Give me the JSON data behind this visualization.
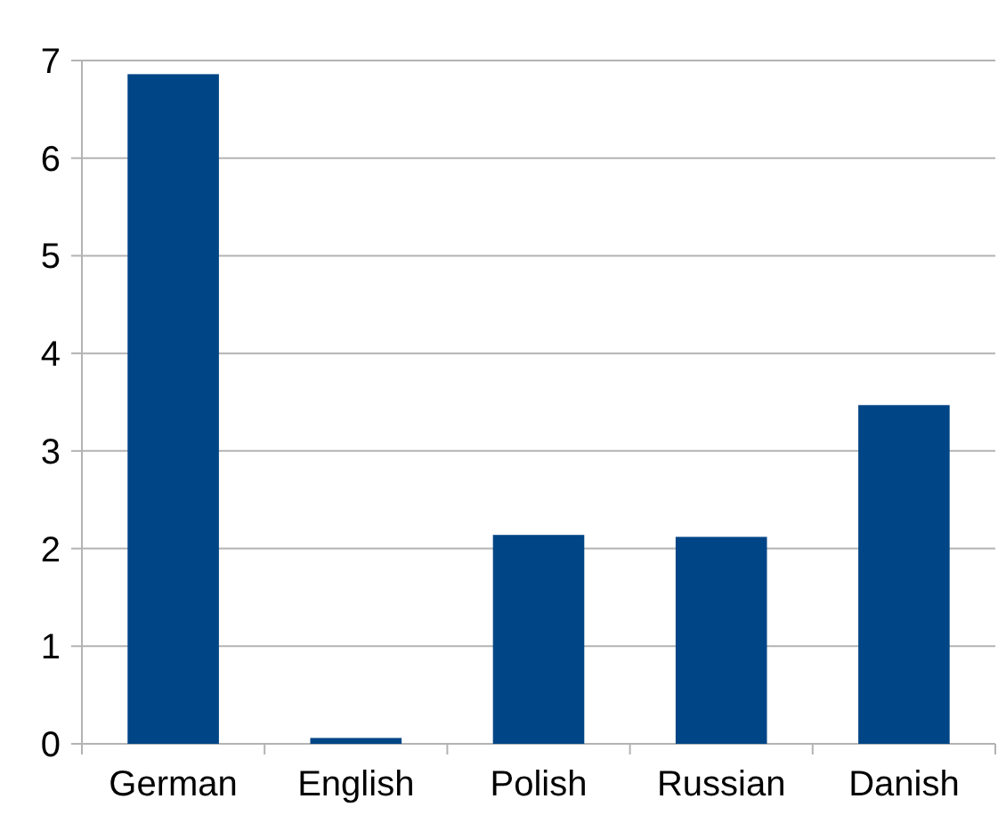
{
  "chart_data": {
    "type": "bar",
    "categories": [
      "German",
      "English",
      "Polish",
      "Russian",
      "Danish"
    ],
    "values": [
      6.86,
      0.06,
      2.14,
      2.12,
      3.47
    ],
    "color": "#004586",
    "ylim": [
      0,
      7
    ],
    "yticks": [
      0,
      1,
      2,
      3,
      4,
      5,
      6,
      7
    ],
    "grid": "y"
  }
}
